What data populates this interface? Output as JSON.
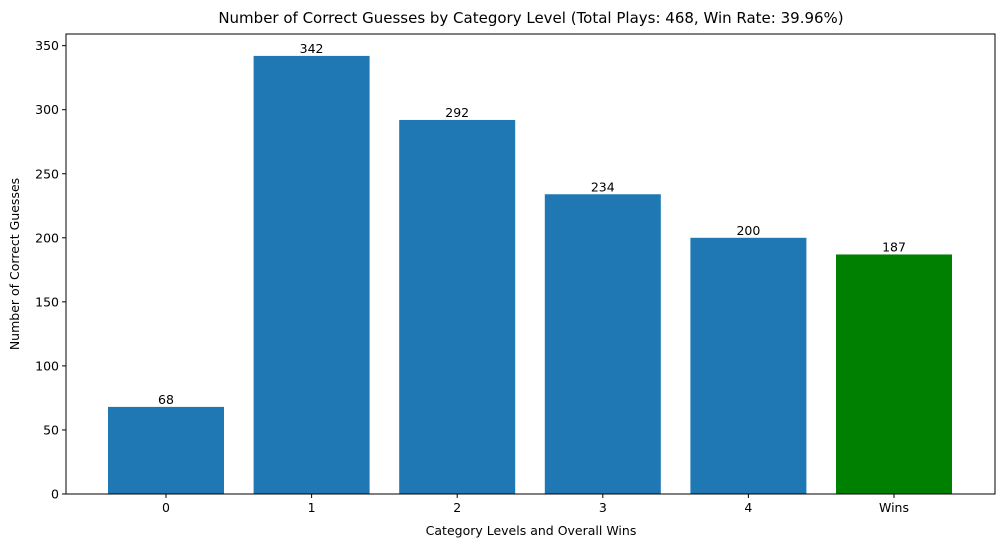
{
  "chart_data": {
    "type": "bar",
    "title": "Number of Correct Guesses by Category Level (Total Plays: 468, Win Rate: 39.96%)",
    "xlabel": "Category Levels and Overall Wins",
    "ylabel": "Number of Correct Guesses",
    "categories": [
      "0",
      "1",
      "2",
      "3",
      "4",
      "Wins"
    ],
    "values": [
      68,
      342,
      292,
      234,
      200,
      187
    ],
    "data_labels": [
      "68",
      "342",
      "292",
      "234",
      "200",
      "187"
    ],
    "bar_colors": [
      "#1f77b4",
      "#1f77b4",
      "#1f77b4",
      "#1f77b4",
      "#1f77b4",
      "#008000"
    ],
    "ylim": [
      0,
      359.1
    ],
    "yticks": [
      0,
      50,
      100,
      150,
      200,
      250,
      300,
      350
    ],
    "ytick_labels": [
      "0",
      "50",
      "100",
      "150",
      "200",
      "250",
      "300",
      "350"
    ],
    "grid": false,
    "legend": "none"
  }
}
